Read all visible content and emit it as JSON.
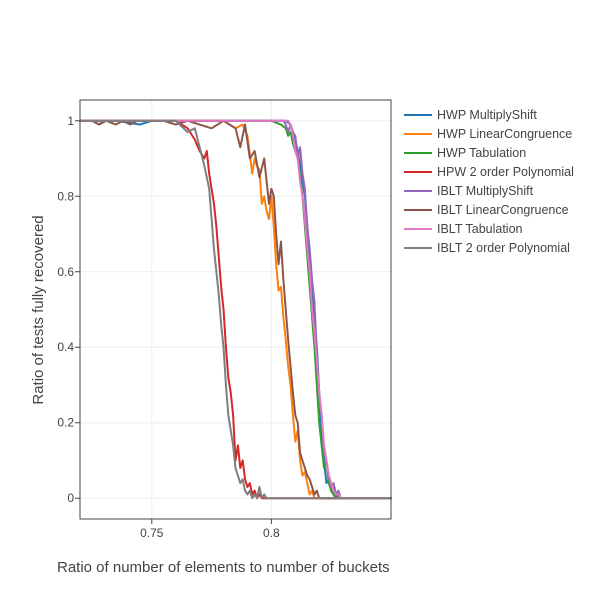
{
  "chart_data": {
    "type": "line",
    "xlabel": "Ratio of number of elements to number of buckets",
    "ylabel": "Ratio of tests fully recovered",
    "xlim": [
      0.72,
      0.85
    ],
    "ylim": [
      -0.055,
      1.055
    ],
    "x_ticks": [
      0.75,
      0.8
    ],
    "x_tick_labels": [
      "0.75",
      "0.8"
    ],
    "y_ticks": [
      0,
      0.2,
      0.4,
      0.6,
      0.8,
      1
    ],
    "y_tick_labels": [
      "0",
      "0.2",
      "0.4",
      "0.6",
      "0.8",
      "1"
    ],
    "grid": true,
    "legend_position": "right",
    "series": [
      {
        "name": "HWP MultiplyShift",
        "color": "#1f77b4",
        "x": [
          0.72,
          0.725,
          0.728,
          0.73,
          0.735,
          0.745,
          0.75,
          0.76,
          0.77,
          0.78,
          0.79,
          0.8,
          0.804,
          0.806,
          0.808,
          0.81,
          0.811,
          0.812,
          0.813,
          0.814,
          0.815,
          0.816,
          0.817,
          0.818,
          0.819,
          0.82,
          0.821,
          0.822,
          0.823,
          0.824,
          0.825,
          0.826,
          0.827,
          0.828,
          0.829,
          0.83,
          0.85
        ],
        "y": [
          1,
          1,
          0.99,
          1,
          1,
          0.99,
          1,
          1,
          1,
          1,
          1,
          1,
          1,
          1,
          0.99,
          0.95,
          0.92,
          0.88,
          0.84,
          0.8,
          0.72,
          0.64,
          0.56,
          0.48,
          0.4,
          0.28,
          0.18,
          0.1,
          0.04,
          0.05,
          0.02,
          0.01,
          0,
          0.01,
          0,
          0,
          0
        ]
      },
      {
        "name": "HWP LinearCongruence",
        "color": "#ff7f0e",
        "x": [
          0.72,
          0.74,
          0.76,
          0.78,
          0.785,
          0.788,
          0.79,
          0.792,
          0.793,
          0.794,
          0.795,
          0.796,
          0.797,
          0.798,
          0.799,
          0.8,
          0.801,
          0.802,
          0.803,
          0.804,
          0.805,
          0.806,
          0.807,
          0.808,
          0.809,
          0.81,
          0.811,
          0.812,
          0.813,
          0.814,
          0.815,
          0.816,
          0.817,
          0.818,
          0.82,
          0.85
        ],
        "y": [
          1,
          1,
          1,
          1,
          0.98,
          0.99,
          0.96,
          0.86,
          0.9,
          0.88,
          0.87,
          0.78,
          0.8,
          0.76,
          0.74,
          0.8,
          0.72,
          0.62,
          0.55,
          0.56,
          0.48,
          0.42,
          0.35,
          0.3,
          0.22,
          0.15,
          0.18,
          0.1,
          0.06,
          0.07,
          0.04,
          0.01,
          0.02,
          0,
          0,
          0
        ]
      },
      {
        "name": "HWP Tabulation",
        "color": "#2ca02c",
        "x": [
          0.72,
          0.74,
          0.76,
          0.78,
          0.8,
          0.804,
          0.806,
          0.807,
          0.808,
          0.809,
          0.81,
          0.811,
          0.812,
          0.813,
          0.814,
          0.815,
          0.816,
          0.817,
          0.818,
          0.819,
          0.82,
          0.821,
          0.822,
          0.823,
          0.824,
          0.825,
          0.826,
          0.828,
          0.83,
          0.85
        ],
        "y": [
          1,
          1,
          1,
          1,
          1,
          0.99,
          0.98,
          0.96,
          0.97,
          0.94,
          0.92,
          0.9,
          0.86,
          0.8,
          0.72,
          0.64,
          0.56,
          0.48,
          0.4,
          0.3,
          0.2,
          0.14,
          0.08,
          0.1,
          0.04,
          0.02,
          0.01,
          0,
          0,
          0
        ]
      },
      {
        "name": "HPW 2 order Polynomial",
        "color": "#d62728",
        "x": [
          0.72,
          0.74,
          0.76,
          0.765,
          0.768,
          0.77,
          0.772,
          0.773,
          0.774,
          0.775,
          0.776,
          0.777,
          0.778,
          0.779,
          0.78,
          0.781,
          0.782,
          0.783,
          0.784,
          0.785,
          0.786,
          0.787,
          0.788,
          0.789,
          0.79,
          0.791,
          0.792,
          0.793,
          0.794,
          0.795,
          0.796,
          0.798,
          0.8,
          0.85
        ],
        "y": [
          1,
          1,
          1,
          0.98,
          0.95,
          0.92,
          0.9,
          0.92,
          0.86,
          0.82,
          0.78,
          0.72,
          0.64,
          0.56,
          0.5,
          0.4,
          0.32,
          0.28,
          0.22,
          0.1,
          0.14,
          0.08,
          0.1,
          0.05,
          0.03,
          0.04,
          0.01,
          0.02,
          0,
          0.01,
          0,
          0,
          0,
          0
        ]
      },
      {
        "name": "IBLT MultiplyShift",
        "color": "#9467bd",
        "x": [
          0.72,
          0.74,
          0.76,
          0.78,
          0.8,
          0.805,
          0.806,
          0.807,
          0.808,
          0.809,
          0.81,
          0.811,
          0.812,
          0.813,
          0.814,
          0.815,
          0.816,
          0.817,
          0.818,
          0.819,
          0.82,
          0.821,
          0.822,
          0.823,
          0.824,
          0.825,
          0.826,
          0.827,
          0.828,
          0.829,
          0.83,
          0.85
        ],
        "y": [
          1,
          1,
          1,
          1,
          1,
          1,
          0.99,
          0.97,
          0.99,
          0.97,
          0.96,
          0.9,
          0.93,
          0.86,
          0.82,
          0.72,
          0.66,
          0.58,
          0.52,
          0.38,
          0.28,
          0.22,
          0.12,
          0.1,
          0.06,
          0.03,
          0.04,
          0.01,
          0.02,
          0,
          0,
          0
        ]
      },
      {
        "name": "IBLT LinearCongruence",
        "color": "#8c564b",
        "x": [
          0.72,
          0.725,
          0.728,
          0.731,
          0.735,
          0.738,
          0.741,
          0.744,
          0.75,
          0.755,
          0.76,
          0.765,
          0.77,
          0.775,
          0.78,
          0.785,
          0.787,
          0.789,
          0.791,
          0.793,
          0.795,
          0.797,
          0.799,
          0.8,
          0.801,
          0.802,
          0.803,
          0.804,
          0.805,
          0.806,
          0.807,
          0.808,
          0.809,
          0.81,
          0.811,
          0.812,
          0.813,
          0.814,
          0.815,
          0.816,
          0.817,
          0.818,
          0.819,
          0.82,
          0.822,
          0.85
        ],
        "y": [
          1,
          1,
          0.99,
          1,
          0.99,
          1,
          0.99,
          1,
          1,
          1,
          0.99,
          1,
          0.99,
          0.98,
          1,
          0.98,
          0.93,
          0.99,
          0.9,
          0.92,
          0.85,
          0.9,
          0.78,
          0.82,
          0.8,
          0.7,
          0.62,
          0.68,
          0.58,
          0.5,
          0.42,
          0.35,
          0.28,
          0.22,
          0.2,
          0.12,
          0.1,
          0.08,
          0.06,
          0.05,
          0.03,
          0.01,
          0.02,
          0,
          0,
          0
        ]
      },
      {
        "name": "IBLT Tabulation",
        "color": "#e377c2",
        "x": [
          0.72,
          0.74,
          0.76,
          0.78,
          0.8,
          0.805,
          0.807,
          0.808,
          0.809,
          0.81,
          0.811,
          0.812,
          0.813,
          0.814,
          0.815,
          0.816,
          0.817,
          0.818,
          0.819,
          0.82,
          0.821,
          0.822,
          0.823,
          0.824,
          0.825,
          0.826,
          0.827,
          0.828,
          0.829,
          0.83,
          0.85
        ],
        "y": [
          1,
          1,
          1,
          1,
          1,
          1,
          1,
          0.99,
          0.96,
          0.92,
          0.9,
          0.84,
          0.8,
          0.74,
          0.66,
          0.6,
          0.5,
          0.44,
          0.36,
          0.28,
          0.22,
          0.14,
          0.1,
          0.06,
          0.04,
          0.02,
          0.01,
          0.01,
          0,
          0,
          0
        ]
      },
      {
        "name": "IBLT 2 order Polynomial",
        "color": "#7f7f7f",
        "x": [
          0.72,
          0.74,
          0.76,
          0.765,
          0.768,
          0.77,
          0.772,
          0.774,
          0.775,
          0.776,
          0.777,
          0.778,
          0.779,
          0.78,
          0.781,
          0.782,
          0.783,
          0.784,
          0.785,
          0.786,
          0.787,
          0.788,
          0.789,
          0.79,
          0.791,
          0.792,
          0.793,
          0.794,
          0.795,
          0.796,
          0.797,
          0.798,
          0.8,
          0.85
        ],
        "y": [
          1,
          1,
          1,
          0.97,
          0.98,
          0.93,
          0.88,
          0.82,
          0.74,
          0.66,
          0.6,
          0.54,
          0.46,
          0.4,
          0.3,
          0.22,
          0.18,
          0.14,
          0.08,
          0.06,
          0.04,
          0.05,
          0.02,
          0.01,
          0.02,
          0,
          0.01,
          0,
          0.03,
          0,
          0.01,
          0,
          0,
          0
        ]
      }
    ]
  }
}
